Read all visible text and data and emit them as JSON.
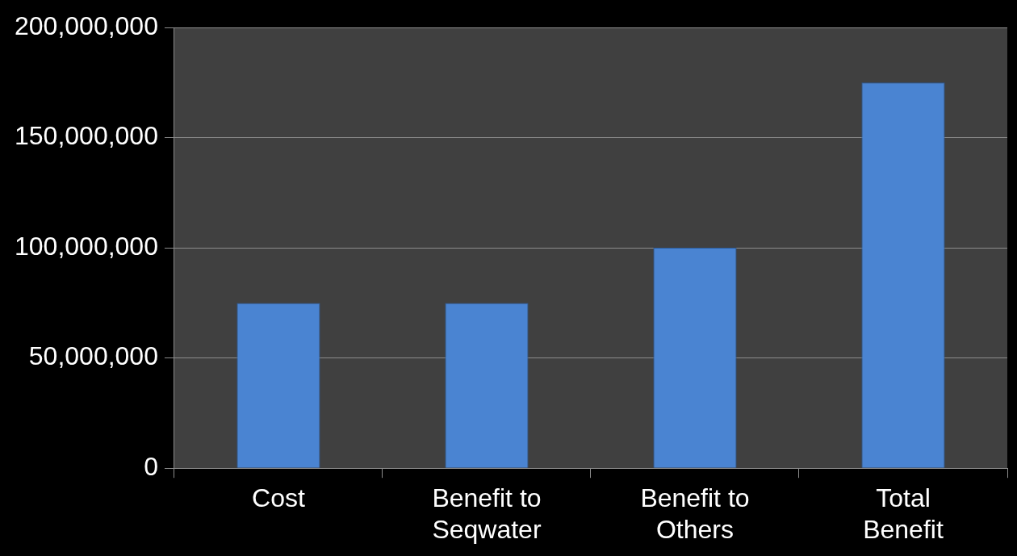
{
  "chart_data": {
    "type": "bar",
    "categories": [
      "Cost",
      "Benefit to Seqwater",
      "Benefit to Others",
      "Total Benefit"
    ],
    "values": [
      75000000,
      75000000,
      100000000,
      175000000
    ],
    "color": "#4a84d2",
    "ylim": [
      0,
      200000000
    ],
    "yticks": [
      0,
      {
        "value": 50000000,
        "label": "50,000,000"
      },
      {
        "value": 100000000,
        "label": "100,000,000"
      },
      {
        "value": 150000000,
        "label": "150,000,000"
      },
      {
        "value": 200000000,
        "label": "200,000,000"
      }
    ],
    "grid": "y"
  }
}
